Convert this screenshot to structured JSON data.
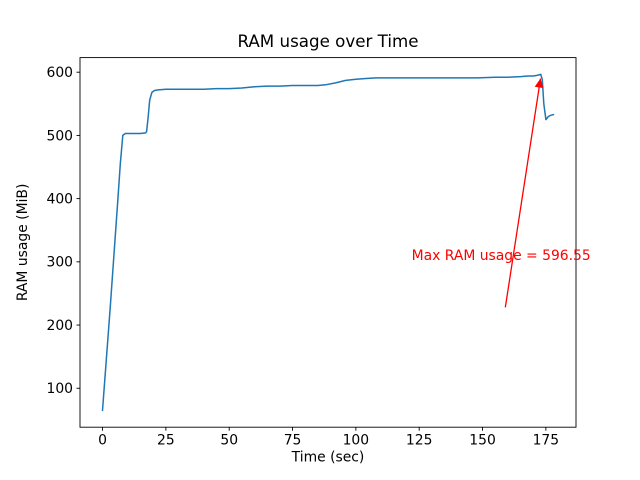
{
  "figure": {
    "background": "#ffffff"
  },
  "chart_data": {
    "type": "line",
    "title": "RAM usage over Time",
    "xlabel": "Time (sec)",
    "ylabel": "RAM usage (MiB)",
    "xlim": [
      -8.9,
      186.9
    ],
    "ylim": [
      38.4,
      623.1
    ],
    "xticks": [
      0,
      25,
      50,
      75,
      100,
      125,
      150,
      175
    ],
    "yticks": [
      100,
      200,
      300,
      400,
      500,
      600
    ],
    "grid": false,
    "legend": null,
    "line_color": "#1f77b4",
    "series": [
      {
        "name": "RAM usage",
        "x": [
          0,
          1.5,
          3,
          4.5,
          6,
          7,
          8,
          9,
          11,
          13,
          15,
          17,
          17.4,
          18,
          18.6,
          19.5,
          20.5,
          22,
          25,
          30,
          35,
          40,
          45,
          50,
          55,
          60,
          65,
          70,
          75,
          80,
          85,
          88,
          92,
          96,
          100,
          104,
          108,
          112,
          118,
          125,
          132,
          140,
          148,
          155,
          160,
          165,
          168,
          170,
          171.5,
          173,
          173.6,
          174.2,
          175,
          176,
          177,
          178
        ],
        "y": [
          65,
          145,
          225,
          310,
          395,
          455,
          500,
          503,
          503,
          503,
          503,
          504,
          506,
          528,
          556,
          568,
          571,
          572,
          573,
          573,
          573,
          573,
          574,
          574,
          575,
          577,
          578,
          578,
          579,
          579,
          579,
          580,
          583,
          587,
          589,
          590,
          591,
          591,
          591,
          591,
          591,
          591,
          591,
          592,
          592,
          593,
          594,
          594,
          595,
          596.55,
          588,
          550,
          525,
          530,
          532,
          533
        ]
      }
    ],
    "annotation": {
      "text": "Max RAM usage = 596.55",
      "color": "#ff0000",
      "text_x": 122,
      "text_y": 303,
      "arrow_from": [
        159,
        228
      ],
      "arrow_to": [
        172.9,
        590
      ]
    }
  }
}
